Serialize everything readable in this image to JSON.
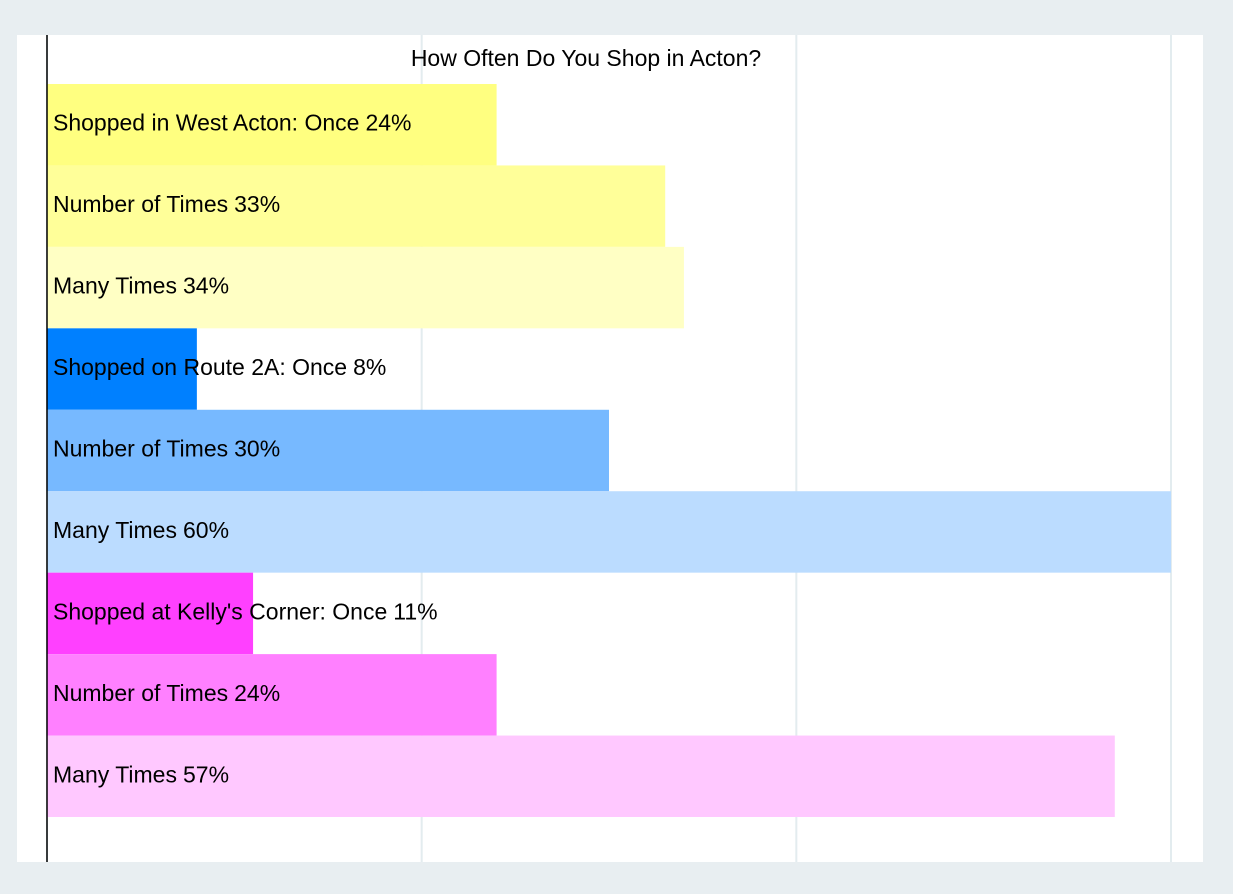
{
  "chart_data": {
    "type": "barh",
    "title": "How Often Do You Shop in Acton?",
    "categories": [
      "Shopped in West Acton: Once",
      "Number of Times",
      "Many Times",
      "Shopped on Route 2A: Once",
      "Number of Times",
      "Many Times",
      "Shopped at Kelly's Corner: Once",
      "Number of Times",
      "Many Times"
    ],
    "values": [
      24,
      33,
      34,
      8,
      30,
      60,
      11,
      24,
      57
    ],
    "value_labels": [
      "24%",
      "33%",
      "34%",
      "8%",
      "30%",
      "60%",
      "11%",
      "24%",
      "57%"
    ],
    "colors": [
      "#ffff80",
      "#ffff99",
      "#ffffc4",
      "#0080ff",
      "#77b9ff",
      "#bbdcff",
      "#ff40ff",
      "#ff80ff",
      "#ffc8ff"
    ],
    "xlim": [
      0,
      60
    ],
    "xticks": [
      0,
      20,
      40,
      60
    ],
    "grid": true
  }
}
